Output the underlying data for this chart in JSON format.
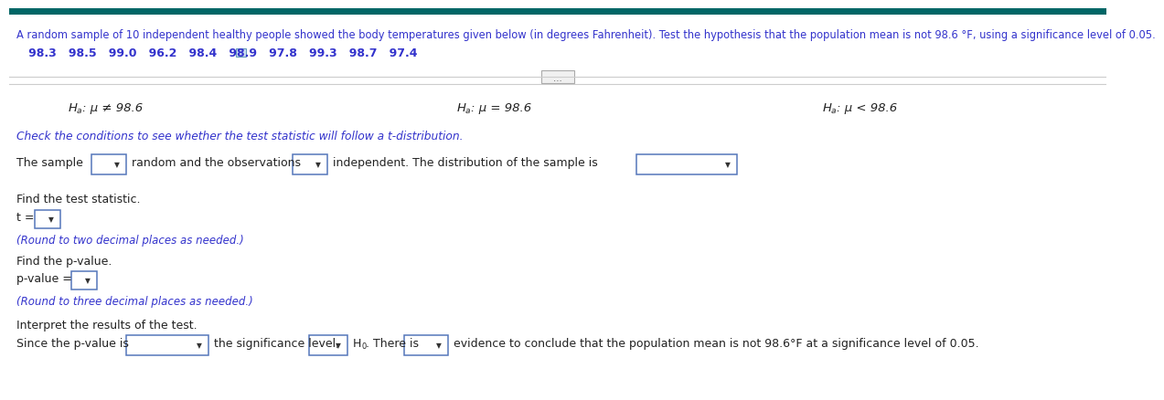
{
  "top_bar_color": "#006666",
  "background_color": "#ffffff",
  "text_color_blue": "#3333cc",
  "text_color_black": "#222222",
  "text_color_italic_blue": "#3333cc",
  "header_text": "A random sample of 10 independent healthy people showed the body temperatures given below (in degrees Fahrenheit). Test the hypothesis that the population mean is not 98.6 °F, using a significance level of 0.05.",
  "data_values": "   98.3   98.5   99.0   96.2   98.4   98.9   97.8   99.3   98.7   97.4",
  "ha1": "H",
  "ha1_sub": "a",
  "ha1_rest": ": μ ≠ 98.6",
  "ha2": "H",
  "ha2_sub": "a",
  "ha2_rest": ": μ = 98.6",
  "ha3": "H",
  "ha3_sub": "a",
  "ha3_rest": ": μ < 98.6",
  "conditions_text": "Check the conditions to see whether the test statistic will follow a t-distribution.",
  "find_t": "Find the test statistic.",
  "find_p": "Find the p-value.",
  "interpret": "Interpret the results of the test.",
  "round_t": "(Round to two decimal places as needed.)",
  "round_p": "(Round to three decimal places as needed.)"
}
